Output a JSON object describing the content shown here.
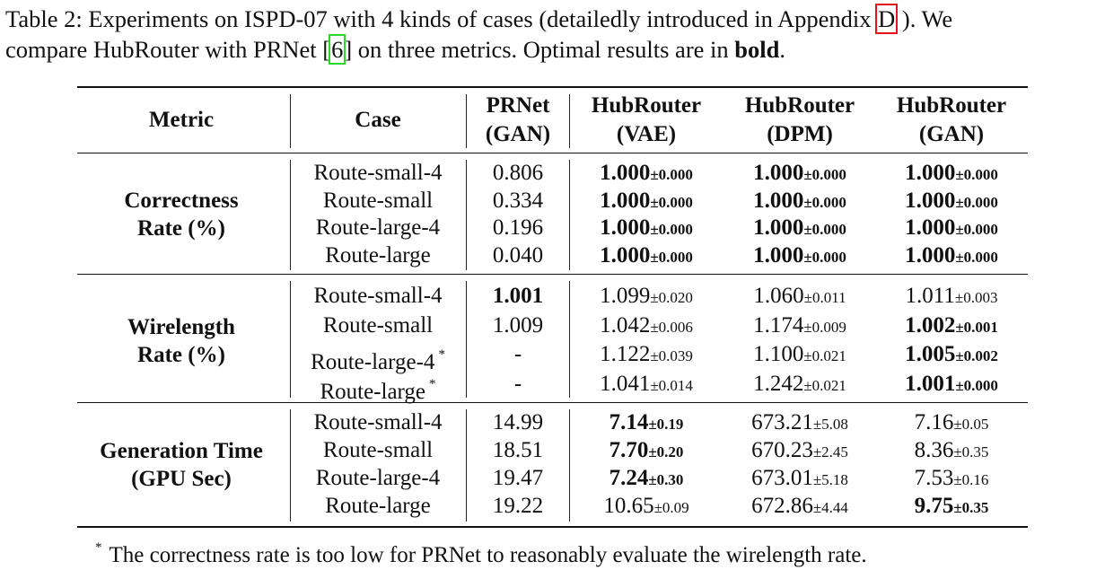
{
  "caption": {
    "label": "Table 2:",
    "text1": " Experiments on ISPD-07 with 4 kinds of cases (detailedly introduced in Appendix ",
    "ref_appendix": "D",
    "text2": " ). We",
    "text3": "compare HubRouter with PRNet [",
    "ref_citation": "6",
    "text4": "] on three metrics. Optimal results are in ",
    "bold_word": "bold",
    "text5": "."
  },
  "table": {
    "header": {
      "metric": "Metric",
      "case": "Case",
      "columns": [
        {
          "line1": "PRNet",
          "line2": "(GAN)"
        },
        {
          "line1": "HubRouter",
          "line2": "(VAE)"
        },
        {
          "line1": "HubRouter",
          "line2": "(DPM)"
        },
        {
          "line1": "HubRouter",
          "line2": "(GAN)"
        }
      ]
    },
    "groups": [
      {
        "line1": "Correctness",
        "line2": "Rate (%)",
        "rows": [
          {
            "case": "Route-small-4",
            "star": "",
            "cells": [
              {
                "v": "0.806",
                "sd": "",
                "b": false
              },
              {
                "v": "1.000",
                "sd": "±0.000",
                "b": true
              },
              {
                "v": "1.000",
                "sd": "±0.000",
                "b": true
              },
              {
                "v": "1.000",
                "sd": "±0.000",
                "b": true
              }
            ]
          },
          {
            "case": "Route-small",
            "star": "",
            "cells": [
              {
                "v": "0.334",
                "sd": "",
                "b": false
              },
              {
                "v": "1.000",
                "sd": "±0.000",
                "b": true
              },
              {
                "v": "1.000",
                "sd": "±0.000",
                "b": true
              },
              {
                "v": "1.000",
                "sd": "±0.000",
                "b": true
              }
            ]
          },
          {
            "case": "Route-large-4",
            "star": "",
            "cells": [
              {
                "v": "0.196",
                "sd": "",
                "b": false
              },
              {
                "v": "1.000",
                "sd": "±0.000",
                "b": true
              },
              {
                "v": "1.000",
                "sd": "±0.000",
                "b": true
              },
              {
                "v": "1.000",
                "sd": "±0.000",
                "b": true
              }
            ]
          },
          {
            "case": "Route-large",
            "star": "",
            "cells": [
              {
                "v": "0.040",
                "sd": "",
                "b": false
              },
              {
                "v": "1.000",
                "sd": "±0.000",
                "b": true
              },
              {
                "v": "1.000",
                "sd": "±0.000",
                "b": true
              },
              {
                "v": "1.000",
                "sd": "±0.000",
                "b": true
              }
            ]
          }
        ]
      },
      {
        "line1": "Wirelength",
        "line2": "Rate (%)",
        "rows": [
          {
            "case": "Route-small-4",
            "star": "",
            "cells": [
              {
                "v": "1.001",
                "sd": "",
                "b": true
              },
              {
                "v": "1.099",
                "sd": "±0.020",
                "b": false
              },
              {
                "v": "1.060",
                "sd": "±0.011",
                "b": false
              },
              {
                "v": "1.011",
                "sd": "±0.003",
                "b": false
              }
            ]
          },
          {
            "case": "Route-small",
            "star": "",
            "cells": [
              {
                "v": "1.009",
                "sd": "",
                "b": false
              },
              {
                "v": "1.042",
                "sd": "±0.006",
                "b": false
              },
              {
                "v": "1.174",
                "sd": "±0.009",
                "b": false
              },
              {
                "v": "1.002",
                "sd": "±0.001",
                "b": true
              }
            ]
          },
          {
            "case": "Route-large-4",
            "star": "*",
            "cells": [
              {
                "v": "-",
                "sd": "",
                "b": false
              },
              {
                "v": "1.122",
                "sd": "±0.039",
                "b": false
              },
              {
                "v": "1.100",
                "sd": "±0.021",
                "b": false
              },
              {
                "v": "1.005",
                "sd": "±0.002",
                "b": true
              }
            ]
          },
          {
            "case": "Route-large",
            "star": "*",
            "cells": [
              {
                "v": "-",
                "sd": "",
                "b": false
              },
              {
                "v": "1.041",
                "sd": "±0.014",
                "b": false
              },
              {
                "v": "1.242",
                "sd": "±0.021",
                "b": false
              },
              {
                "v": "1.001",
                "sd": "±0.000",
                "b": true
              }
            ]
          }
        ]
      },
      {
        "line1": "Generation Time",
        "line2": "(GPU Sec)",
        "rows": [
          {
            "case": "Route-small-4",
            "star": "",
            "cells": [
              {
                "v": "14.99",
                "sd": "",
                "b": false
              },
              {
                "v": "7.14",
                "sd": "±0.19",
                "b": true
              },
              {
                "v": "673.21",
                "sd": "±5.08",
                "b": false
              },
              {
                "v": "7.16",
                "sd": "±0.05",
                "b": false
              }
            ]
          },
          {
            "case": "Route-small",
            "star": "",
            "cells": [
              {
                "v": "18.51",
                "sd": "",
                "b": false
              },
              {
                "v": "7.70",
                "sd": "±0.20",
                "b": true
              },
              {
                "v": "670.23",
                "sd": "±2.45",
                "b": false
              },
              {
                "v": "8.36",
                "sd": "±0.35",
                "b": false
              }
            ]
          },
          {
            "case": "Route-large-4",
            "star": "",
            "cells": [
              {
                "v": "19.47",
                "sd": "",
                "b": false
              },
              {
                "v": "7.24",
                "sd": "±0.30",
                "b": true
              },
              {
                "v": "673.01",
                "sd": "±5.18",
                "b": false
              },
              {
                "v": "7.53",
                "sd": "±0.16",
                "b": false
              }
            ]
          },
          {
            "case": "Route-large",
            "star": "",
            "cells": [
              {
                "v": "19.22",
                "sd": "",
                "b": false
              },
              {
                "v": "10.65",
                "sd": "±0.09",
                "b": false
              },
              {
                "v": "672.86",
                "sd": "±4.44",
                "b": false
              },
              {
                "v": "9.75",
                "sd": "±0.35",
                "b": true
              }
            ]
          }
        ]
      }
    ]
  },
  "footnote": {
    "marker": "*",
    "text": "The correctness rate is too low for PRNet to reasonably evaluate the wirelength rate."
  }
}
